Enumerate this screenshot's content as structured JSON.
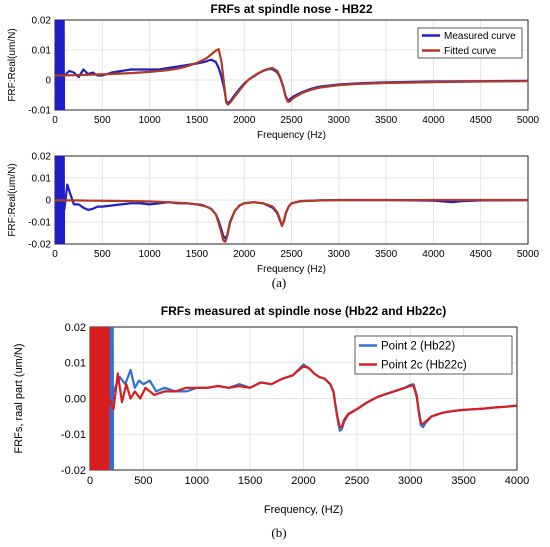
{
  "captions": {
    "a": "(a)",
    "b": "(b)"
  },
  "chart_data": [
    {
      "id": "a1",
      "type": "line",
      "title": "FRFs at spindle nose - HB22",
      "xlabel": "Frequency (Hz)",
      "ylabel": "FRF:Real(um/N)",
      "xlim": [
        0,
        5000
      ],
      "ylim": [
        -0.01,
        0.02
      ],
      "xticks": [
        0,
        500,
        1000,
        1500,
        2000,
        2500,
        3000,
        3500,
        4000,
        4500,
        5000
      ],
      "yticks": [
        -0.01,
        0,
        0.01,
        0.02
      ],
      "ytick_labels": [
        "-0.01",
        "0",
        "0.01",
        "0.02"
      ],
      "grid": true,
      "legend": "top-right",
      "series": [
        {
          "name": "Measured curve",
          "color": "#1f1fc8",
          "noise_until": 100,
          "x": [
            100,
            150,
            200,
            250,
            300,
            350,
            400,
            450,
            500,
            600,
            700,
            800,
            900,
            1000,
            1100,
            1200,
            1300,
            1400,
            1500,
            1550,
            1600,
            1650,
            1700,
            1730,
            1760,
            1790,
            1810,
            1830,
            1860,
            1900,
            1950,
            2000,
            2050,
            2100,
            2150,
            2200,
            2250,
            2300,
            2350,
            2380,
            2410,
            2440,
            2460,
            2480,
            2520,
            2600,
            2700,
            2800,
            3000,
            3200,
            3500,
            4000,
            4500,
            5000
          ],
          "y": [
            0.0015,
            0.003,
            0.0025,
            0.001,
            0.0035,
            0.002,
            0.0025,
            0.0015,
            0.0015,
            0.0025,
            0.003,
            0.0035,
            0.0035,
            0.0035,
            0.0035,
            0.004,
            0.0045,
            0.005,
            0.0055,
            0.0058,
            0.0062,
            0.0068,
            0.006,
            0.004,
            0.001,
            -0.003,
            -0.007,
            -0.0078,
            -0.0068,
            -0.005,
            -0.003,
            -0.0012,
            0.0002,
            0.0012,
            0.0022,
            0.003,
            0.0036,
            0.0036,
            0.0025,
            0.0008,
            -0.002,
            -0.0055,
            -0.0068,
            -0.0065,
            -0.0055,
            -0.0042,
            -0.003,
            -0.0022,
            -0.0015,
            -0.0011,
            -0.0008,
            -0.0005,
            -0.0004,
            -0.0003
          ]
        },
        {
          "name": "Fitted curve",
          "color": "#b23a22",
          "x": [
            0,
            200,
            400,
            600,
            800,
            1000,
            1200,
            1300,
            1400,
            1500,
            1600,
            1650,
            1700,
            1730,
            1760,
            1790,
            1810,
            1830,
            1860,
            1900,
            1950,
            2000,
            2050,
            2100,
            2150,
            2200,
            2250,
            2300,
            2350,
            2380,
            2410,
            2440,
            2460,
            2480,
            2520,
            2600,
            2700,
            2800,
            3000,
            3200,
            3500,
            4000,
            4500,
            5000
          ],
          "y": [
            0.0015,
            0.0016,
            0.0018,
            0.002,
            0.0023,
            0.0027,
            0.0033,
            0.0038,
            0.0046,
            0.0057,
            0.0072,
            0.0085,
            0.0098,
            0.0103,
            0.006,
            -0.002,
            -0.0075,
            -0.0082,
            -0.0072,
            -0.0055,
            -0.0035,
            -0.0015,
            0.0002,
            0.0013,
            0.0023,
            0.0031,
            0.0037,
            0.004,
            0.003,
            0.001,
            -0.002,
            -0.0058,
            -0.0072,
            -0.0072,
            -0.006,
            -0.0045,
            -0.0033,
            -0.0025,
            -0.0017,
            -0.0013,
            -0.001,
            -0.0007,
            -0.0005,
            -0.0004
          ]
        }
      ]
    },
    {
      "id": "a2",
      "type": "line",
      "title": "",
      "xlabel": "Frequency (Hz)",
      "ylabel": "FRF:Real(um/N)",
      "xlim": [
        0,
        5000
      ],
      "ylim": [
        -0.02,
        0.02
      ],
      "xticks": [
        0,
        500,
        1000,
        1500,
        2000,
        2500,
        3000,
        3500,
        4000,
        4500,
        5000
      ],
      "yticks": [
        -0.02,
        -0.01,
        0,
        0.01,
        0.02
      ],
      "ytick_labels": [
        "-0.02",
        "-0.01",
        "0",
        "0.01",
        "0.02"
      ],
      "grid": true,
      "series": [
        {
          "name": "Measured curve",
          "color": "#1f1fc8",
          "noise_until": 100,
          "x": [
            100,
            130,
            160,
            200,
            250,
            300,
            350,
            400,
            450,
            500,
            600,
            700,
            800,
            900,
            1000,
            1100,
            1200,
            1300,
            1400,
            1500,
            1550,
            1600,
            1650,
            1700,
            1730,
            1760,
            1780,
            1800,
            1820,
            1850,
            1900,
            1950,
            2000,
            2100,
            2200,
            2300,
            2350,
            2380,
            2400,
            2420,
            2440,
            2470,
            2500,
            2600,
            2800,
            3000,
            3500,
            4000,
            4200,
            4300,
            4500,
            5000
          ],
          "y": [
            -0.004,
            0.007,
            0.003,
            -0.002,
            -0.002,
            -0.0035,
            -0.0045,
            -0.004,
            -0.003,
            -0.003,
            -0.0025,
            -0.002,
            -0.0015,
            -0.0015,
            -0.002,
            -0.0015,
            -0.001,
            -0.0015,
            -0.0015,
            -0.002,
            -0.0022,
            -0.003,
            -0.004,
            -0.0065,
            -0.0095,
            -0.0135,
            -0.0165,
            -0.0175,
            -0.016,
            -0.01,
            -0.005,
            -0.0025,
            -0.0015,
            -0.001,
            -0.0015,
            -0.0035,
            -0.006,
            -0.0095,
            -0.0115,
            -0.0095,
            -0.006,
            -0.003,
            -0.0015,
            -0.0005,
            -0.0002,
            0.0,
            0.0,
            -0.0003,
            -0.001,
            -0.0005,
            -0.0002,
            -0.0001
          ]
        },
        {
          "name": "Fitted curve",
          "color": "#b23a22",
          "x": [
            0,
            200,
            400,
            600,
            800,
            1000,
            1200,
            1400,
            1500,
            1600,
            1650,
            1700,
            1730,
            1760,
            1780,
            1800,
            1820,
            1850,
            1900,
            1950,
            2000,
            2100,
            2200,
            2300,
            2350,
            2380,
            2400,
            2420,
            2440,
            2470,
            2500,
            2600,
            2800,
            3000,
            4000,
            5000
          ],
          "y": [
            -0.0002,
            -0.0002,
            -0.0003,
            -0.0004,
            -0.0005,
            -0.0007,
            -0.001,
            -0.0015,
            -0.002,
            -0.003,
            -0.004,
            -0.0065,
            -0.0105,
            -0.015,
            -0.0185,
            -0.019,
            -0.0165,
            -0.0105,
            -0.005,
            -0.0025,
            -0.0015,
            -0.001,
            -0.0015,
            -0.003,
            -0.0055,
            -0.009,
            -0.0118,
            -0.0098,
            -0.006,
            -0.003,
            -0.0015,
            -0.0005,
            -0.0002,
            -0.0001,
            0.0,
            0.0
          ]
        }
      ]
    },
    {
      "id": "b",
      "type": "line",
      "title": "FRFs  measured at spindle nose (Hb22 and Hb22c)",
      "xlabel": "Frequency, (HZ)",
      "ylabel": "FRFs, raal part (um/N)",
      "xlim": [
        0,
        4000
      ],
      "ylim": [
        -0.02,
        0.02
      ],
      "xticks": [
        0,
        500,
        1000,
        1500,
        2000,
        2500,
        3000,
        3500,
        4000
      ],
      "yticks": [
        -0.02,
        -0.01,
        0.0,
        0.01,
        0.02
      ],
      "ytick_labels": [
        "-0.02",
        "-0.01",
        "0.00",
        "0.01",
        "0.02"
      ],
      "grid": true,
      "legend": "top-right",
      "series": [
        {
          "name": "Point 2 (Hb22)",
          "color": "#2e6fd8",
          "noise_until": 220,
          "x": [
            220,
            280,
            330,
            380,
            420,
            460,
            500,
            560,
            620,
            700,
            800,
            900,
            1000,
            1100,
            1200,
            1300,
            1400,
            1500,
            1600,
            1700,
            1800,
            1900,
            1950,
            2000,
            2050,
            2100,
            2150,
            2200,
            2250,
            2280,
            2300,
            2320,
            2340,
            2360,
            2380,
            2420,
            2500,
            2600,
            2700,
            2800,
            2900,
            2950,
            3000,
            3030,
            3060,
            3080,
            3100,
            3120,
            3140,
            3170,
            3200,
            3300,
            3400,
            3500,
            3600,
            3700,
            3800,
            3900,
            4000
          ],
          "y": [
            0.002,
            0.006,
            0.004,
            0.008,
            0.003,
            0.005,
            0.004,
            0.005,
            0.002,
            0.003,
            0.002,
            0.002,
            0.003,
            0.003,
            0.0035,
            0.003,
            0.004,
            0.003,
            0.0045,
            0.004,
            0.0055,
            0.0065,
            0.008,
            0.0095,
            0.0085,
            0.007,
            0.006,
            0.0055,
            0.004,
            0.002,
            -0.002,
            -0.006,
            -0.009,
            -0.0085,
            -0.0065,
            -0.0045,
            -0.003,
            -0.001,
            0.0005,
            0.0015,
            0.0025,
            0.003,
            0.0038,
            0.004,
            0.001,
            -0.004,
            -0.0075,
            -0.008,
            -0.007,
            -0.006,
            -0.005,
            -0.004,
            -0.0035,
            -0.0032,
            -0.003,
            -0.0028,
            -0.0025,
            -0.0023,
            -0.002
          ]
        },
        {
          "name": "Point 2c (Hb22c)",
          "color": "#d81e1e",
          "noise_until": 180,
          "x": [
            180,
            220,
            260,
            300,
            340,
            380,
            420,
            470,
            520,
            600,
            700,
            800,
            900,
            1000,
            1100,
            1200,
            1300,
            1400,
            1500,
            1600,
            1700,
            1800,
            1900,
            1950,
            2000,
            2050,
            2100,
            2150,
            2200,
            2250,
            2280,
            2300,
            2320,
            2340,
            2360,
            2380,
            2420,
            2500,
            2600,
            2700,
            2800,
            2900,
            2950,
            3000,
            3030,
            3060,
            3080,
            3100,
            3120,
            3140,
            3170,
            3200,
            3300,
            3400,
            3500,
            3600,
            3700,
            3800,
            3900,
            4000
          ],
          "y": [
            0.0,
            -0.003,
            0.007,
            -0.001,
            0.004,
            0.0,
            0.002,
            0.0,
            0.003,
            0.001,
            0.002,
            0.002,
            0.003,
            0.003,
            0.003,
            0.0035,
            0.003,
            0.0035,
            0.003,
            0.0045,
            0.004,
            0.0055,
            0.0065,
            0.0078,
            0.009,
            0.0085,
            0.007,
            0.006,
            0.0055,
            0.004,
            0.002,
            -0.002,
            -0.0055,
            -0.008,
            -0.0078,
            -0.006,
            -0.0043,
            -0.003,
            -0.001,
            0.0005,
            0.0015,
            0.0025,
            0.003,
            0.0035,
            0.0037,
            0.0005,
            -0.0035,
            -0.0068,
            -0.0072,
            -0.0065,
            -0.0058,
            -0.005,
            -0.004,
            -0.0035,
            -0.0032,
            -0.003,
            -0.0028,
            -0.0025,
            -0.0023,
            -0.002
          ]
        }
      ]
    }
  ]
}
